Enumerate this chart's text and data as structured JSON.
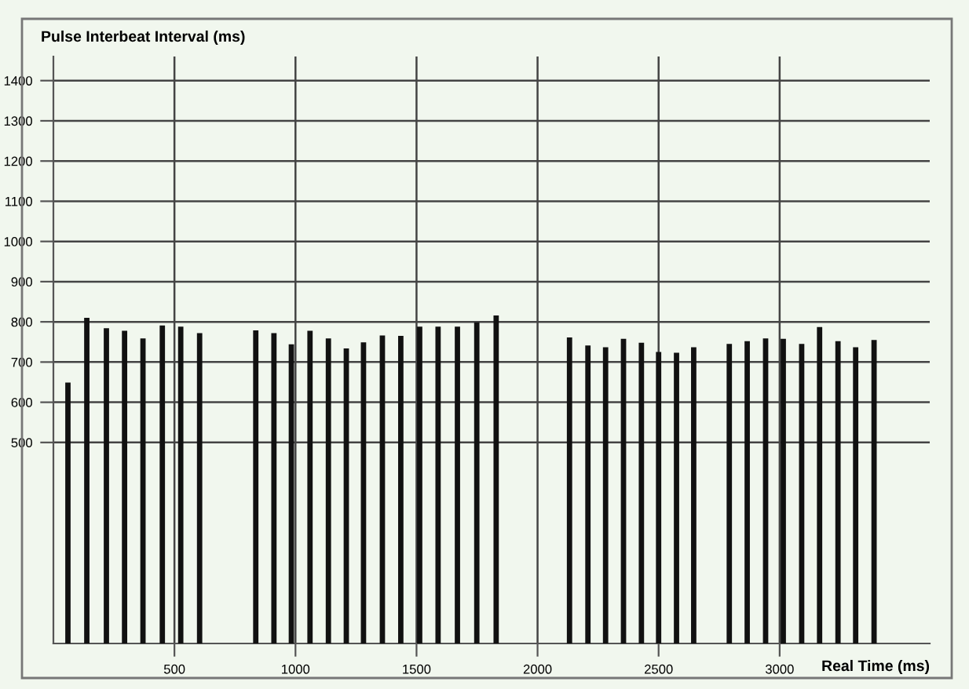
{
  "chart_data": {
    "type": "bar",
    "xlabel": "Real Time (ms)",
    "ylabel": "Pulse Interbeat Interval (ms)",
    "x": [
      60,
      138,
      219,
      294,
      370,
      450,
      526,
      604,
      836,
      911,
      983,
      1060,
      1136,
      1210,
      1281,
      1359,
      1435,
      1513,
      1589,
      1669,
      1749,
      1829,
      2132,
      2208,
      2281,
      2355,
      2429,
      2500,
      2574,
      2645,
      2792,
      2866,
      2942,
      3015,
      3091,
      3165,
      3241,
      3314,
      3390
    ],
    "values": [
      649,
      810,
      784,
      778,
      759,
      791,
      788,
      772,
      779,
      772,
      744,
      778,
      759,
      734,
      749,
      766,
      765,
      788,
      788,
      788,
      799,
      816,
      761,
      741,
      737,
      758,
      748,
      725,
      723,
      737,
      745,
      752,
      759,
      758,
      745,
      787,
      752,
      737,
      755
    ],
    "color": "#111111",
    "xlim": [
      0,
      3620
    ],
    "xticks": [
      500,
      1000,
      1500,
      2000,
      2500,
      3000
    ],
    "ylim": [
      0,
      1460
    ],
    "yticks": [
      500,
      600,
      700,
      800,
      900,
      1000,
      1100,
      1200,
      1300,
      1400
    ],
    "grid": true
  }
}
